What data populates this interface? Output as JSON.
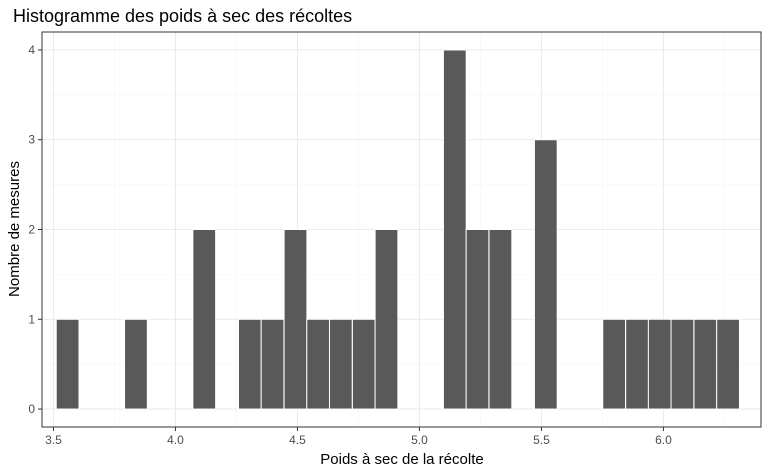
{
  "chart_data": {
    "type": "bar",
    "title": "Histogramme des poids à sec des récoltes",
    "xlabel": "Poids à sec de la récolte",
    "ylabel": "Nombre de mesures",
    "xlim": [
      3.453,
      6.4
    ],
    "ylim": [
      -0.2,
      4.2
    ],
    "xticks": [
      3.5,
      4.0,
      4.5,
      5.0,
      5.5,
      6.0
    ],
    "xtick_labels": [
      "3.5",
      "4.0",
      "4.5",
      "5.0",
      "5.5",
      "6.0"
    ],
    "yticks": [
      0,
      1,
      2,
      3,
      4
    ],
    "ytick_labels": [
      "0",
      "1",
      "2",
      "3",
      "4"
    ],
    "grid": true,
    "bin_width": 0.0933,
    "bins": [
      {
        "x": 3.558,
        "count": 1
      },
      {
        "x": 3.652,
        "count": 0
      },
      {
        "x": 3.745,
        "count": 0
      },
      {
        "x": 3.838,
        "count": 1
      },
      {
        "x": 3.932,
        "count": 0
      },
      {
        "x": 4.025,
        "count": 0
      },
      {
        "x": 4.118,
        "count": 2
      },
      {
        "x": 4.212,
        "count": 0
      },
      {
        "x": 4.305,
        "count": 1
      },
      {
        "x": 4.398,
        "count": 1
      },
      {
        "x": 4.492,
        "count": 2
      },
      {
        "x": 4.585,
        "count": 1
      },
      {
        "x": 4.678,
        "count": 1
      },
      {
        "x": 4.772,
        "count": 1
      },
      {
        "x": 4.865,
        "count": 2
      },
      {
        "x": 4.958,
        "count": 0
      },
      {
        "x": 5.052,
        "count": 0
      },
      {
        "x": 5.145,
        "count": 4
      },
      {
        "x": 5.238,
        "count": 2
      },
      {
        "x": 5.332,
        "count": 2
      },
      {
        "x": 5.425,
        "count": 0
      },
      {
        "x": 5.518,
        "count": 3
      },
      {
        "x": 5.612,
        "count": 0
      },
      {
        "x": 5.705,
        "count": 0
      },
      {
        "x": 5.798,
        "count": 1
      },
      {
        "x": 5.892,
        "count": 1
      },
      {
        "x": 5.985,
        "count": 1
      },
      {
        "x": 6.078,
        "count": 1
      },
      {
        "x": 6.172,
        "count": 1
      },
      {
        "x": 6.265,
        "count": 1
      }
    ],
    "colors": {
      "bar_fill": "#595959",
      "bar_stroke": "#ffffff",
      "grid_major": "#ebebeb",
      "grid_minor": "#f5f5f5",
      "panel_border": "#333333",
      "tick_text": "#4d4d4d",
      "title_text": "#000000"
    }
  }
}
